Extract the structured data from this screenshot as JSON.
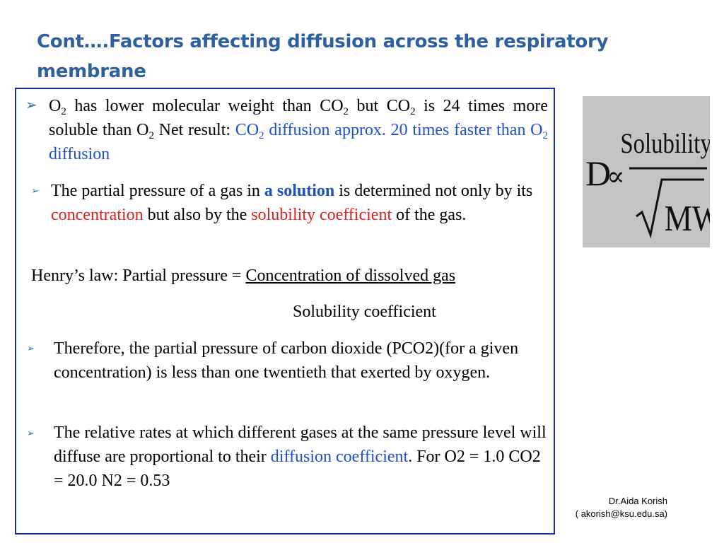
{
  "title": "Cont….Factors affecting diffusion across the respiratory membrane",
  "bullet_glyph": "➢",
  "p1": {
    "o": "O",
    "sub2": "2",
    "t1": " has lower molecular weight than CO",
    "t2": " but CO",
    "t3": " is 24 times more soluble than O",
    "t4": " Net result: ",
    "blue1": "CO",
    "blue2": " diffusion approx. 20 times  faster than O",
    "blue3": " diffusion"
  },
  "p2": {
    "t1": "The partial pressure of a gas in ",
    "bold_blue": "a solution",
    "t2": " is determined not only by its ",
    "red1": "concentration",
    "t3": " but also by the ",
    "red2": "solubility coefficient",
    "t4": " of the gas."
  },
  "henry": {
    "label": "Henry’s law: Partial pressure = ",
    "numerator": "Concentration of dissolved gas",
    "denominator": "Solubility coefficient"
  },
  "p3": {
    "text": "Therefore, the partial pressure of carbon dioxide (PCO2)(for a given concentration) is less than one twentieth that exerted by oxygen."
  },
  "p4": {
    "t1": "The relative rates at which different gases at the same pressure level will diffuse are proportional to their ",
    "blue": "diffusion coefficient",
    "t2": ". For  O2 =  1.0    CO2 = 20.0    N2  = 0.53"
  },
  "formula": {
    "d": "D",
    "prop": "∝",
    "numerator": "Solubility",
    "denominator": "MW"
  },
  "footer": {
    "name": "Dr.Aida Korish",
    "email": "( akorish@ksu.edu.sa)"
  }
}
